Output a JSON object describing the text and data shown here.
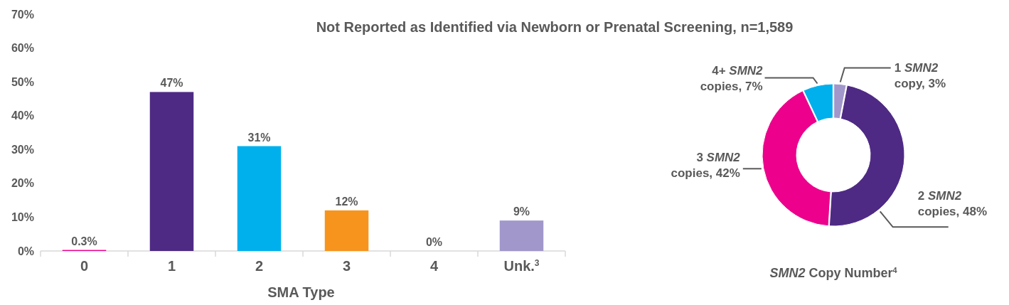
{
  "chart_data": [
    {
      "type": "bar",
      "title": "Not Reported as Identified via Newborn or Prenatal Screening, n=1,589",
      "xlabel": "SMA Type",
      "categories": [
        "0",
        "1",
        "2",
        "3",
        "4",
        "Unk.$^{3}$"
      ],
      "values": [
        0.3,
        47,
        31,
        12,
        0,
        9
      ],
      "colors": [
        "#ec008c",
        "#4e2a84",
        "#00b0ed",
        "#f7941d",
        "#a89fd0",
        "#a197cb"
      ],
      "value_labels": [
        "0.3%",
        "47%",
        "31%",
        "12%",
        "0%",
        "9%"
      ],
      "ylim": [
        0,
        70
      ],
      "yticks": [
        {
          "value": 0,
          "label": "0%"
        },
        {
          "value": 10,
          "label": "10%"
        },
        {
          "value": 20,
          "label": "20%"
        },
        {
          "value": 30,
          "label": "30%"
        },
        {
          "value": 40,
          "label": "40%"
        },
        {
          "value": 50,
          "label": "50%"
        },
        {
          "value": 60,
          "label": "60%"
        },
        {
          "value": 70,
          "label": "70%"
        }
      ],
      "grid": false
    },
    {
      "type": "donut",
      "xlabel": "SMN2 Copy Number$^{4}$",
      "categories": [
        "1 SMN2 copy, 3%",
        "2 SMN2 copies, 48%",
        "3 SMN2 copies, 42%",
        "4+ SMN2 copies, 7%"
      ],
      "values": [
        3,
        48,
        42,
        7
      ],
      "colors": [
        "#a197cb",
        "#4e2a84",
        "#ec008c",
        "#00b0ed"
      ]
    }
  ]
}
